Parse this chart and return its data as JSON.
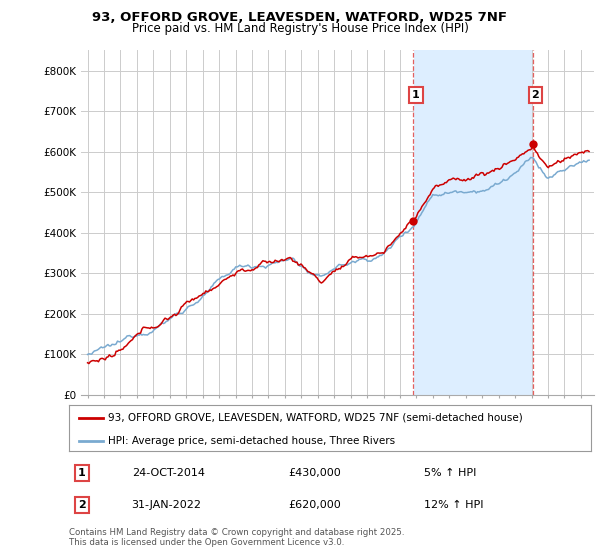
{
  "title_line1": "93, OFFORD GROVE, LEAVESDEN, WATFORD, WD25 7NF",
  "title_line2": "Price paid vs. HM Land Registry's House Price Index (HPI)",
  "legend_line1": "93, OFFORD GROVE, LEAVESDEN, WATFORD, WD25 7NF (semi-detached house)",
  "legend_line2": "HPI: Average price, semi-detached house, Three Rivers",
  "annotation1_label": "1",
  "annotation1_date": "24-OCT-2014",
  "annotation1_price": "£430,000",
  "annotation1_hpi": "5% ↑ HPI",
  "annotation2_label": "2",
  "annotation2_date": "31-JAN-2022",
  "annotation2_price": "£620,000",
  "annotation2_hpi": "12% ↑ HPI",
  "footnote": "Contains HM Land Registry data © Crown copyright and database right 2025.\nThis data is licensed under the Open Government Licence v3.0.",
  "price_color": "#cc0000",
  "hpi_color": "#7aaad0",
  "hpi_fill_color": "#ddeeff",
  "vline_color": "#dd4444",
  "background_color": "#ffffff",
  "plot_bg_color": "#ffffff",
  "grid_color": "#cccccc",
  "ylim": [
    0,
    850000
  ],
  "yticks": [
    0,
    100000,
    200000,
    300000,
    400000,
    500000,
    600000,
    700000,
    800000
  ],
  "ytick_labels": [
    "£0",
    "£100K",
    "£200K",
    "£300K",
    "£400K",
    "£500K",
    "£600K",
    "£700K",
    "£800K"
  ],
  "marker1_year": 2014.82,
  "marker1_value": 430000,
  "marker2_year": 2022.08,
  "marker2_value": 620000
}
